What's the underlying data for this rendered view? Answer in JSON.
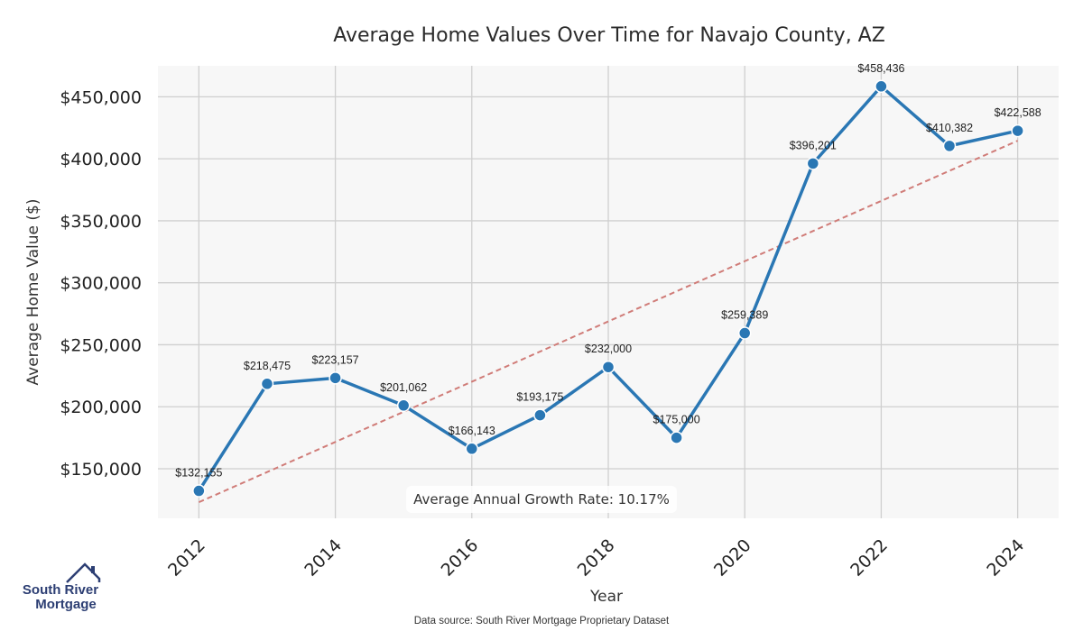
{
  "chart_data": {
    "type": "line",
    "title": "Average Home Values Over Time for Navajo County, AZ",
    "xlabel": "Year",
    "ylabel": "Average Home Value ($)",
    "x": [
      2012,
      2013,
      2014,
      2015,
      2016,
      2017,
      2018,
      2019,
      2020,
      2021,
      2022,
      2023,
      2024
    ],
    "series": [
      {
        "name": "Average Home Value",
        "values": [
          132155,
          218475,
          223157,
          201062,
          166143,
          193175,
          232000,
          175000,
          259389,
          396201,
          458436,
          410382,
          422588
        ],
        "labels": [
          "$132,155",
          "$218,475",
          "$223,157",
          "$201,062",
          "$166,143",
          "$193,175",
          "$232,000",
          "$175,000",
          "$259,389",
          "$396,201",
          "$458,436",
          "$410,382",
          "$422,588"
        ],
        "color": "#2a77b4"
      },
      {
        "name": "Trend",
        "values": [
          123000,
          147300,
          171600,
          195900,
          220200,
          244500,
          268800,
          293100,
          317400,
          341700,
          366000,
          390300,
          414600
        ],
        "style": "dashed",
        "color": "#d07c78"
      }
    ],
    "xticks": [
      2012,
      2014,
      2016,
      2018,
      2020,
      2022,
      2024
    ],
    "xtick_labels": [
      "2012",
      "2014",
      "2016",
      "2018",
      "2020",
      "2022",
      "2024"
    ],
    "yticks": [
      150000,
      200000,
      250000,
      300000,
      350000,
      400000,
      450000
    ],
    "ytick_labels": [
      "$150,000",
      "$200,000",
      "$250,000",
      "$300,000",
      "$350,000",
      "$400,000",
      "$450,000"
    ],
    "xlim": [
      2011.4,
      2024.6
    ],
    "ylim": [
      110000,
      475000
    ],
    "grid": true,
    "annotation": "Average Annual Growth Rate: 10.17%"
  },
  "footer": {
    "source": "Data source: South River Mortgage Proprietary Dataset",
    "logo_line1": "South River",
    "logo_line2": "Mortgage"
  },
  "colors": {
    "plot_bg": "#f7f7f7",
    "grid": "#cfcfcf",
    "line": "#2a77b4",
    "trend": "#d07c78",
    "logo": "#2c3e73"
  }
}
